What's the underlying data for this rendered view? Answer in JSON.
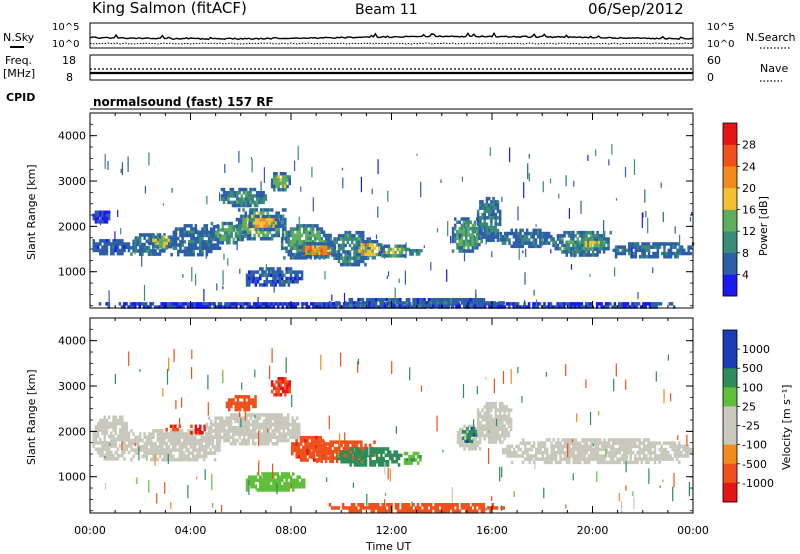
{
  "header": {
    "station": "King Salmon (fitACF)",
    "beam": "Beam 11",
    "date": "06/Sep/2012"
  },
  "noise_panel": {
    "left_label": "N.Sky",
    "right_label": "N.Search",
    "ticks_left": [
      "10^5",
      "10^0"
    ],
    "ticks_right": [
      "10^5",
      "10^0"
    ]
  },
  "freq_panel": {
    "left_label_1": "Freq.",
    "left_label_2": "[MHz]",
    "ticks_left": [
      "18",
      "8"
    ],
    "right_label": "Nave",
    "ticks_right": [
      "60",
      "0"
    ]
  },
  "cpid_panel": {
    "label": "CPID",
    "text": "normalsound (fast) 157 RF"
  },
  "x_axis": {
    "label": "Time UT",
    "ticks": [
      "00:00",
      "04:00",
      "08:00",
      "12:00",
      "16:00",
      "20:00",
      "00:00"
    ]
  },
  "colors": {
    "power": [
      "#1a1af0",
      "#2d5fa8",
      "#3a8c78",
      "#5fae5f",
      "#f5c033",
      "#f08c1a",
      "#f0501a",
      "#e61414"
    ],
    "velocity": [
      "#e61414",
      "#f0501a",
      "#f08c1a",
      "#c8c8bc",
      "#c8c8bc",
      "#5fbf3a",
      "#2d8c5a",
      "#1a3cb4"
    ],
    "ground": "#c8c8bc"
  },
  "chart_data": [
    {
      "type": "heatmap",
      "title": "Power",
      "xlabel": "Time UT",
      "ylabel": "Slant Range [km]",
      "xlim": [
        0,
        24
      ],
      "ylim": [
        200,
        4500
      ],
      "y_ticks": [
        "1000",
        "2000",
        "3000",
        "4000"
      ],
      "colorbar": {
        "label": "Power [dB]",
        "ticks": [
          "4",
          "8",
          "12",
          "16",
          "20",
          "24",
          "28"
        ],
        "range": [
          0,
          32
        ]
      },
      "regions": [
        {
          "t0": 0.1,
          "t1": 0.8,
          "r0": 2050,
          "r1": 2350,
          "value": 3
        },
        {
          "t0": 0.1,
          "t1": 1.6,
          "r0": 1380,
          "r1": 1720,
          "value": 6
        },
        {
          "t0": 1.6,
          "t1": 3.2,
          "r0": 1350,
          "r1": 1850,
          "value": 8
        },
        {
          "t0": 2.3,
          "t1": 3.4,
          "r0": 1550,
          "r1": 1800,
          "value": 15
        },
        {
          "t0": 3.2,
          "t1": 5.2,
          "r0": 1350,
          "r1": 2050,
          "value": 7
        },
        {
          "t0": 4.8,
          "t1": 6.2,
          "r0": 1600,
          "r1": 2100,
          "value": 12
        },
        {
          "t0": 5.8,
          "t1": 7.8,
          "r0": 1700,
          "r1": 2400,
          "value": 14
        },
        {
          "t0": 6.3,
          "t1": 7.6,
          "r0": 1900,
          "r1": 2250,
          "value": 19
        },
        {
          "t0": 6.2,
          "t1": 8.5,
          "r0": 700,
          "r1": 1100,
          "value": 6
        },
        {
          "t0": 7.6,
          "t1": 9.6,
          "r0": 1250,
          "r1": 2050,
          "value": 13
        },
        {
          "t0": 8.3,
          "t1": 9.8,
          "r0": 1300,
          "r1": 1650,
          "value": 22
        },
        {
          "t0": 9.6,
          "t1": 11.2,
          "r0": 1150,
          "r1": 1900,
          "value": 10
        },
        {
          "t0": 10.5,
          "t1": 11.7,
          "r0": 1300,
          "r1": 1700,
          "value": 18
        },
        {
          "t0": 11.5,
          "t1": 12.7,
          "r0": 1300,
          "r1": 1600,
          "value": 14
        },
        {
          "t0": 12.7,
          "t1": 13.2,
          "r0": 1350,
          "r1": 1500,
          "value": 8
        },
        {
          "t0": 14.4,
          "t1": 15.6,
          "r0": 1450,
          "r1": 2200,
          "value": 13
        },
        {
          "t0": 15.4,
          "t1": 16.4,
          "r0": 1650,
          "r1": 2650,
          "value": 9
        },
        {
          "t0": 16.3,
          "t1": 18.4,
          "r0": 1500,
          "r1": 1950,
          "value": 7
        },
        {
          "t0": 18.4,
          "t1": 20.8,
          "r0": 1350,
          "r1": 1900,
          "value": 10
        },
        {
          "t0": 19.6,
          "t1": 20.4,
          "r0": 1450,
          "r1": 1750,
          "value": 17
        },
        {
          "t0": 20.8,
          "t1": 24.0,
          "r0": 1300,
          "r1": 1650,
          "value": 7
        },
        {
          "t0": 5.2,
          "t1": 7.0,
          "r0": 2400,
          "r1": 2850,
          "value": 10
        },
        {
          "t0": 7.2,
          "t1": 8.0,
          "r0": 2800,
          "r1": 3200,
          "value": 14
        },
        {
          "t0": 0.0,
          "t1": 24.0,
          "r0": 200,
          "r1": 330,
          "value": 4
        },
        {
          "t0": 9.5,
          "t1": 16.5,
          "r0": 200,
          "r1": 420,
          "value": 6
        }
      ]
    },
    {
      "type": "heatmap",
      "title": "Velocity",
      "xlabel": "Time UT",
      "ylabel": "Slant Range [km]",
      "xlim": [
        0,
        24
      ],
      "ylim": [
        200,
        4500
      ],
      "y_ticks": [
        "1000",
        "2000",
        "3000",
        "4000"
      ],
      "colorbar": {
        "label": "Velocity [m s⁻¹]",
        "ticks": [
          "1000",
          "500",
          "100",
          "25",
          "-25",
          "-100",
          "-500",
          "-1000"
        ]
      },
      "regions": [
        {
          "t0": 0.1,
          "t1": 1.6,
          "r0": 1380,
          "r1": 2350,
          "value": 0
        },
        {
          "t0": 1.6,
          "t1": 5.2,
          "r0": 1350,
          "r1": 2050,
          "value": 0
        },
        {
          "t0": 3.0,
          "t1": 3.6,
          "r0": 2000,
          "r1": 2150,
          "value": -400
        },
        {
          "t0": 3.9,
          "t1": 4.6,
          "r0": 1950,
          "r1": 2150,
          "value": -600
        },
        {
          "t0": 4.6,
          "t1": 8.4,
          "r0": 1700,
          "r1": 2400,
          "value": 0
        },
        {
          "t0": 5.4,
          "t1": 6.6,
          "r0": 2450,
          "r1": 2800,
          "value": -300
        },
        {
          "t0": 7.2,
          "t1": 8.0,
          "r0": 2800,
          "r1": 3200,
          "value": -500
        },
        {
          "t0": 6.2,
          "t1": 8.6,
          "r0": 700,
          "r1": 1100,
          "value": 60
        },
        {
          "t0": 8.0,
          "t1": 9.6,
          "r0": 1350,
          "r1": 1900,
          "value": -400
        },
        {
          "t0": 9.0,
          "t1": 11.4,
          "r0": 1300,
          "r1": 1800,
          "value": -300
        },
        {
          "t0": 9.8,
          "t1": 12.4,
          "r0": 1200,
          "r1": 1650,
          "value": 300
        },
        {
          "t0": 12.4,
          "t1": 13.2,
          "r0": 1300,
          "r1": 1550,
          "value": 80
        },
        {
          "t0": 14.6,
          "t1": 15.6,
          "r0": 1600,
          "r1": 2150,
          "value": 0
        },
        {
          "t0": 14.8,
          "t1": 15.4,
          "r0": 1750,
          "r1": 2100,
          "value": 400
        },
        {
          "t0": 15.4,
          "t1": 16.8,
          "r0": 1700,
          "r1": 2650,
          "value": 0
        },
        {
          "t0": 16.4,
          "t1": 24.0,
          "r0": 1300,
          "r1": 1850,
          "value": 0
        },
        {
          "t0": 9.5,
          "t1": 16.5,
          "r0": 200,
          "r1": 420,
          "value": -150
        }
      ]
    }
  ],
  "noise_series": {
    "n_sky_level": 3.3,
    "n_search_level": 1.2,
    "freq_mhz": 10.5,
    "nave": 8
  }
}
